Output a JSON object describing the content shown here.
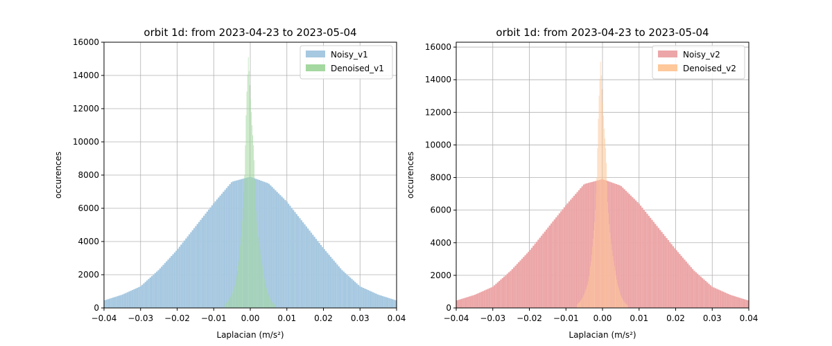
{
  "chart_data": [
    {
      "type": "bar",
      "title": "orbit 1d: from 2023-04-23 to 2023-05-04",
      "xlabel": "Laplacian (m/s²)",
      "ylabel": "occurences",
      "xlim": [
        -0.04,
        0.04
      ],
      "ylim": [
        0,
        16000
      ],
      "xticks": [
        "−0.04",
        "−0.03",
        "−0.02",
        "−0.01",
        "0.00",
        "0.01",
        "0.02",
        "0.03",
        "0.04"
      ],
      "yticks": [
        "0",
        "2000",
        "4000",
        "6000",
        "8000",
        "10000",
        "12000",
        "14000",
        "16000"
      ],
      "grid": true,
      "legend_position": "top-right",
      "series": [
        {
          "name": "Noisy_v1",
          "color": "#a6c8e0",
          "x": [
            -0.04,
            -0.035,
            -0.03,
            -0.025,
            -0.02,
            -0.015,
            -0.01,
            -0.005,
            0.0,
            0.005,
            0.01,
            0.015,
            0.02,
            0.025,
            0.03,
            0.035,
            0.04
          ],
          "y": [
            450,
            800,
            1300,
            2300,
            3500,
            4900,
            6300,
            7600,
            7900,
            7500,
            6400,
            5000,
            3600,
            2300,
            1300,
            800,
            450
          ]
        },
        {
          "name": "Denoised_v1",
          "color": "#a4d8a0",
          "x": [
            -0.007,
            -0.006,
            -0.005,
            -0.004,
            -0.003,
            -0.002,
            -0.0015,
            -0.001,
            -0.0005,
            0.0,
            0.0005,
            0.001,
            0.0015,
            0.002,
            0.003,
            0.004,
            0.005,
            0.006,
            0.007
          ],
          "y": [
            200,
            400,
            800,
            1500,
            3000,
            5500,
            8000,
            12500,
            15100,
            13000,
            11000,
            9500,
            6500,
            4800,
            3000,
            1600,
            800,
            350,
            150
          ]
        }
      ]
    },
    {
      "type": "bar",
      "title": "orbit 1d: from 2023-04-23 to 2023-05-04",
      "xlabel": "Laplacian (m/s²)",
      "ylabel": "occurences",
      "xlim": [
        -0.04,
        0.04
      ],
      "ylim": [
        0,
        16300
      ],
      "xticks": [
        "−0.04",
        "−0.03",
        "−0.02",
        "−0.01",
        "0.00",
        "0.01",
        "0.02",
        "0.03",
        "0.04"
      ],
      "yticks": [
        "0",
        "2000",
        "4000",
        "6000",
        "8000",
        "10000",
        "12000",
        "14000",
        "16000"
      ],
      "grid": true,
      "legend_position": "top-right",
      "series": [
        {
          "name": "Noisy_v2",
          "color": "#eca6a7",
          "x": [
            -0.04,
            -0.035,
            -0.03,
            -0.025,
            -0.02,
            -0.015,
            -0.01,
            -0.005,
            0.0,
            0.005,
            0.01,
            0.015,
            0.02,
            0.025,
            0.03,
            0.035,
            0.04
          ],
          "y": [
            450,
            800,
            1300,
            2300,
            3500,
            4900,
            6300,
            7600,
            7900,
            7500,
            6400,
            5000,
            3600,
            2300,
            1300,
            800,
            450
          ]
        },
        {
          "name": "Denoised_v2",
          "color": "#fec89a",
          "x": [
            -0.007,
            -0.006,
            -0.005,
            -0.004,
            -0.003,
            -0.002,
            -0.0015,
            -0.001,
            -0.0005,
            0.0,
            0.0005,
            0.001,
            0.0015,
            0.002,
            0.003,
            0.004,
            0.005,
            0.006,
            0.007
          ],
          "y": [
            200,
            400,
            800,
            1500,
            3000,
            5500,
            8000,
            12500,
            15100,
            13000,
            11000,
            9500,
            6500,
            4800,
            3000,
            1600,
            800,
            350,
            150
          ]
        }
      ]
    }
  ]
}
